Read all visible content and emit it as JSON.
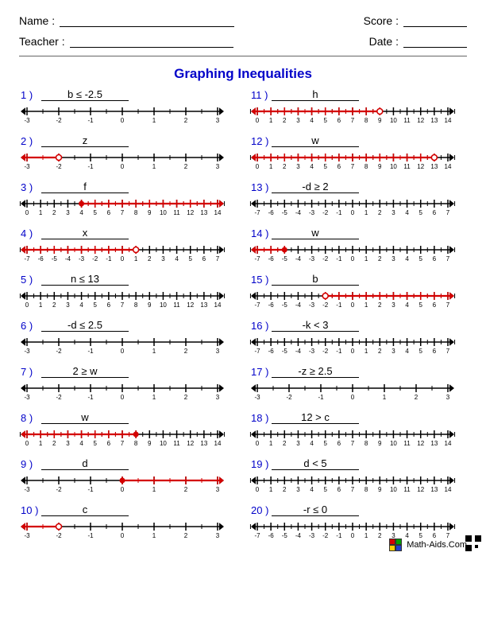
{
  "header": {
    "name_label": "Name :",
    "teacher_label": "Teacher :",
    "score_label": "Score :",
    "date_label": "Date :"
  },
  "title": {
    "text": "Graphing Inequalities",
    "color": "#0202c9"
  },
  "palette": {
    "axis": "#000000",
    "highlight": "#d40000",
    "num_color": "#0202c9",
    "axis_width": 1.5,
    "tick_h": 5,
    "arrow_size": 6,
    "dot_r": 3.5,
    "font_size": 8
  },
  "axis_kinds": {
    "small": {
      "min": -3,
      "max": 3,
      "ticks": [
        -3,
        -2,
        -1,
        0,
        1,
        2,
        3
      ]
    },
    "big": {
      "min": 0,
      "max": 14,
      "ticks": [
        0,
        1,
        2,
        3,
        4,
        5,
        6,
        7,
        8,
        9,
        10,
        11,
        12,
        13,
        14
      ]
    },
    "sym": {
      "min": -7,
      "max": 7,
      "ticks": [
        -7,
        -6,
        -5,
        -4,
        -3,
        -2,
        -1,
        0,
        1,
        2,
        3,
        4,
        5,
        6,
        7
      ]
    }
  },
  "left": [
    {
      "num": "1 )",
      "expr": "b  ≤  -2.5",
      "axis": "small",
      "shade": null
    },
    {
      "num": "2 )",
      "expr": "z",
      "axis": "small",
      "shade": {
        "dir": "left",
        "at": -2,
        "fill": "open",
        "from_inf": true
      }
    },
    {
      "num": "3 )",
      "expr": "f",
      "axis": "big",
      "shade": {
        "dir": "right",
        "at": 4,
        "fill": "closed"
      }
    },
    {
      "num": "4 )",
      "expr": "x",
      "axis": "sym",
      "shade": {
        "dir": "left",
        "at": 1,
        "fill": "open",
        "from_inf": true
      }
    },
    {
      "num": "5 )",
      "expr": "n  ≤  13",
      "axis": "big",
      "shade": null
    },
    {
      "num": "6 )",
      "expr": "-d  ≤  2.5",
      "axis": "small",
      "shade": null
    },
    {
      "num": "7 )",
      "expr": "2  ≥  w",
      "axis": "small",
      "shade": null
    },
    {
      "num": "8 )",
      "expr": "w",
      "axis": "big",
      "shade": {
        "dir": "left",
        "at": 8,
        "fill": "closed",
        "from_inf": true
      }
    },
    {
      "num": "9 )",
      "expr": "d",
      "axis": "small",
      "shade": {
        "dir": "right",
        "at": 0,
        "fill": "closed"
      }
    },
    {
      "num": "10 )",
      "expr": "c",
      "axis": "small",
      "shade": {
        "dir": "left",
        "at": -2,
        "fill": "open",
        "from_inf": true
      }
    }
  ],
  "right": [
    {
      "num": "11 )",
      "expr": "h",
      "axis": "big",
      "shade": {
        "dir": "left",
        "at": 9,
        "fill": "open",
        "from_inf": true
      }
    },
    {
      "num": "12 )",
      "expr": "w",
      "axis": "big",
      "shade": {
        "dir": "left",
        "at": 13,
        "fill": "open",
        "from_inf": true
      }
    },
    {
      "num": "13 )",
      "expr": "-d  ≥  2",
      "axis": "sym",
      "shade": null
    },
    {
      "num": "14 )",
      "expr": "w",
      "axis": "sym",
      "shade": {
        "dir": "left",
        "at": -5,
        "fill": "closed",
        "from_inf": true
      }
    },
    {
      "num": "15 )",
      "expr": "b",
      "axis": "sym",
      "shade": {
        "dir": "right",
        "at": -2,
        "fill": "open"
      }
    },
    {
      "num": "16 )",
      "expr": "-k  <  3",
      "axis": "sym",
      "shade": null
    },
    {
      "num": "17 )",
      "expr": "-z  ≥  2.5",
      "axis": "small",
      "shade": null
    },
    {
      "num": "18 )",
      "expr": "12  >  c",
      "axis": "big",
      "shade": null
    },
    {
      "num": "19 )",
      "expr": "d  <  5",
      "axis": "big",
      "shade": null
    },
    {
      "num": "20 )",
      "expr": "-r  ≤  0",
      "axis": "sym",
      "shade": null
    }
  ],
  "footer": {
    "text": "Math-Aids.Com"
  }
}
